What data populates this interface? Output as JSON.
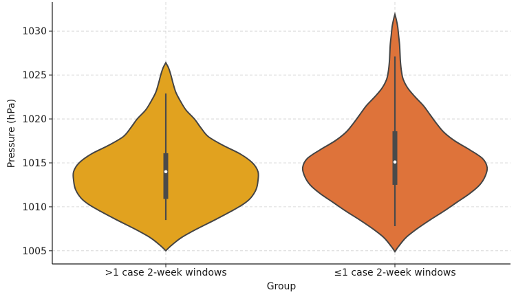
{
  "chart_data": {
    "type": "violin",
    "title": "",
    "xlabel": "Group",
    "ylabel": "Pressure (hPa)",
    "ylim": [
      1003.5,
      1033.3
    ],
    "yticks": [
      1005,
      1010,
      1015,
      1020,
      1025,
      1030
    ],
    "grid": true,
    "categories": [
      ">1 case 2-week windows",
      "≤1 case 2-week windows"
    ],
    "series": [
      {
        "name": ">1 case 2-week windows",
        "color": "#E1A21F",
        "min": 1008.5,
        "q1": 1010.9,
        "median": 1014.0,
        "q3": 1016.1,
        "max": 1022.9,
        "kde_extent": [
          1005.0,
          1026.4
        ],
        "density_profile": [
          [
            1005.0,
            0.0
          ],
          [
            1005.6,
            0.06
          ],
          [
            1006.5,
            0.17
          ],
          [
            1007.5,
            0.34
          ],
          [
            1008.5,
            0.53
          ],
          [
            1009.5,
            0.71
          ],
          [
            1010.3,
            0.84
          ],
          [
            1011.0,
            0.92
          ],
          [
            1012.0,
            0.98
          ],
          [
            1013.0,
            1.0
          ],
          [
            1014.0,
            1.0
          ],
          [
            1015.0,
            0.94
          ],
          [
            1016.0,
            0.81
          ],
          [
            1017.0,
            0.62
          ],
          [
            1018.0,
            0.46
          ],
          [
            1019.0,
            0.38
          ],
          [
            1020.0,
            0.31
          ],
          [
            1021.0,
            0.22
          ],
          [
            1022.0,
            0.16
          ],
          [
            1023.0,
            0.11
          ],
          [
            1024.0,
            0.08
          ],
          [
            1025.0,
            0.055
          ],
          [
            1025.8,
            0.03
          ],
          [
            1026.4,
            0.0
          ]
        ]
      },
      {
        "name": "≤1 case 2-week windows",
        "color": "#DE733A",
        "min": 1007.8,
        "q1": 1012.5,
        "median": 1015.1,
        "q3": 1018.6,
        "max": 1027.1,
        "kde_extent": [
          1004.9,
          1031.9
        ],
        "density_profile": [
          [
            1004.9,
            0.0
          ],
          [
            1005.5,
            0.04
          ],
          [
            1006.5,
            0.12
          ],
          [
            1007.5,
            0.24
          ],
          [
            1008.5,
            0.38
          ],
          [
            1009.5,
            0.53
          ],
          [
            1010.5,
            0.67
          ],
          [
            1011.5,
            0.81
          ],
          [
            1012.5,
            0.92
          ],
          [
            1013.5,
            0.98
          ],
          [
            1014.5,
            1.0
          ],
          [
            1015.5,
            0.95
          ],
          [
            1016.5,
            0.81
          ],
          [
            1017.5,
            0.65
          ],
          [
            1018.5,
            0.53
          ],
          [
            1019.5,
            0.45
          ],
          [
            1020.5,
            0.38
          ],
          [
            1021.5,
            0.31
          ],
          [
            1022.5,
            0.22
          ],
          [
            1023.5,
            0.14
          ],
          [
            1024.5,
            0.09
          ],
          [
            1025.5,
            0.07
          ],
          [
            1026.5,
            0.06
          ],
          [
            1027.5,
            0.055
          ],
          [
            1028.5,
            0.05
          ],
          [
            1029.5,
            0.04
          ],
          [
            1030.5,
            0.03
          ],
          [
            1031.3,
            0.015
          ],
          [
            1031.9,
            0.0
          ]
        ]
      }
    ]
  }
}
